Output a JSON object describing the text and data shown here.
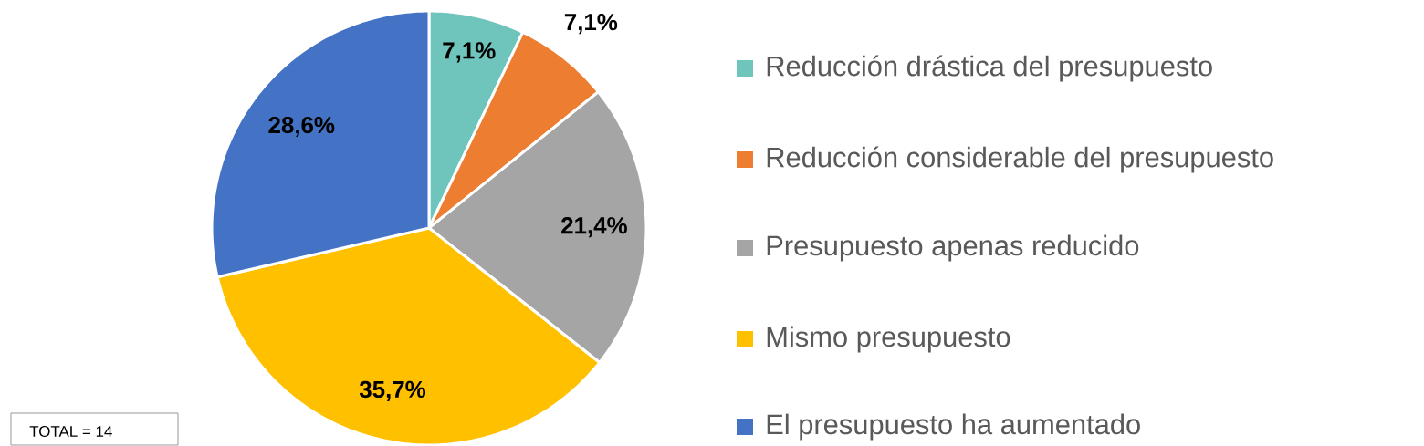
{
  "chart_data": {
    "type": "pie",
    "categories": [
      "Reducción drástica del presupuesto",
      "Reducción considerable del presupuesto",
      "Presupuesto apenas reducido",
      "Mismo presupuesto",
      "El presupuesto ha aumentado"
    ],
    "values": [
      7.1,
      7.1,
      21.4,
      35.7,
      28.6
    ],
    "colors": [
      "#6fc4bc",
      "#ed7d31",
      "#a5a5a5",
      "#ffc000",
      "#4472c4"
    ],
    "value_labels": [
      "7,1%",
      "7,1%",
      "21,4%",
      "35,7%",
      "28,6%"
    ],
    "legend": "right",
    "annotations": [
      "TOTAL = 14"
    ]
  }
}
